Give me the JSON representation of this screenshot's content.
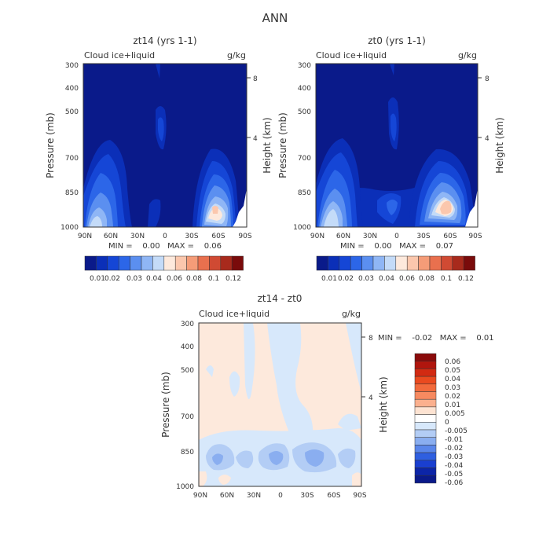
{
  "page_title": "ANN",
  "colors": {
    "bg_field": "#0a1a8a",
    "zero_band": "#fde9dc",
    "neg_band": "#d7e8fb"
  },
  "chart_data": [
    {
      "type": "contour",
      "title": "zt14 (yrs 1-1)",
      "left_label": "Cloud ice+liquid",
      "right_label": "g/kg",
      "ylabel": "Pressure (mb)",
      "ylabel_right": "Height (km)",
      "xticks": [
        "90N",
        "60N",
        "30N",
        "0",
        "30S",
        "60S",
        "90S"
      ],
      "yticks": [
        "300",
        "400",
        "500",
        "700",
        "850",
        "1000"
      ],
      "yticks_right": [
        "8",
        "4"
      ],
      "stats": "MIN =    0.00   MAX =    0.06",
      "colorbar_labels": [
        "0.01",
        "0.02",
        "0.03",
        "0.04",
        "0.06",
        "0.08",
        "0.1",
        "0.12"
      ],
      "colorbar_colors": [
        "#0a1a8a",
        "#0b2fb8",
        "#1546d6",
        "#2c66e8",
        "#5b8ff0",
        "#8fb6f5",
        "#c4dbf8",
        "#fde9dc",
        "#fbc7ad",
        "#f59c78",
        "#e9704e",
        "#d04a33",
        "#a82a1c",
        "#7a0b0b"
      ]
    },
    {
      "type": "contour",
      "title": "zt0 (yrs 1-1)",
      "left_label": "Cloud ice+liquid",
      "right_label": "g/kg",
      "ylabel": "Pressure (mb)",
      "ylabel_right": "Height (km)",
      "xticks": [
        "90N",
        "60N",
        "30N",
        "0",
        "30S",
        "60S",
        "90S"
      ],
      "yticks": [
        "300",
        "400",
        "500",
        "700",
        "850",
        "1000"
      ],
      "yticks_right": [
        "8",
        "4"
      ],
      "stats": "MIN =    0.00   MAX =    0.07",
      "colorbar_labels": [
        "0.01",
        "0.02",
        "0.03",
        "0.04",
        "0.06",
        "0.08",
        "0.1",
        "0.12"
      ],
      "colorbar_colors": [
        "#0a1a8a",
        "#0b2fb8",
        "#1546d6",
        "#2c66e8",
        "#5b8ff0",
        "#8fb6f5",
        "#c4dbf8",
        "#fde9dc",
        "#fbc7ad",
        "#f59c78",
        "#e9704e",
        "#d04a33",
        "#a82a1c",
        "#7a0b0b"
      ]
    },
    {
      "type": "contour",
      "title": "zt14 - zt0",
      "left_label": "Cloud ice+liquid",
      "right_label": "g/kg",
      "ylabel": "Pressure (mb)",
      "ylabel_right": "Height (km)",
      "xticks": [
        "90N",
        "60N",
        "30N",
        "0",
        "30S",
        "60S",
        "90S"
      ],
      "yticks": [
        "300",
        "400",
        "500",
        "700",
        "850",
        "1000"
      ],
      "yticks_right": [
        "8",
        "4"
      ],
      "stats": "MIN =    -0.02   MAX =    0.01",
      "colorbar_labels": [
        "0.06",
        "0.05",
        "0.04",
        "0.03",
        "0.02",
        "0.01",
        "0.005",
        "0",
        "-0.005",
        "-0.01",
        "-0.02",
        "-0.03",
        "-0.04",
        "-0.05",
        "-0.06"
      ],
      "colorbar_colors": [
        "#8a0a0a",
        "#b0160e",
        "#d22a12",
        "#ea4a1f",
        "#f26a3c",
        "#f78a60",
        "#fbb08e",
        "#fde3d2",
        "#ffffff",
        "#d7e8fb",
        "#b3cdf5",
        "#8aaef0",
        "#5a86ea",
        "#2f5fe0",
        "#1a3fd0",
        "#0c25a8",
        "#0a1a8a"
      ]
    }
  ]
}
